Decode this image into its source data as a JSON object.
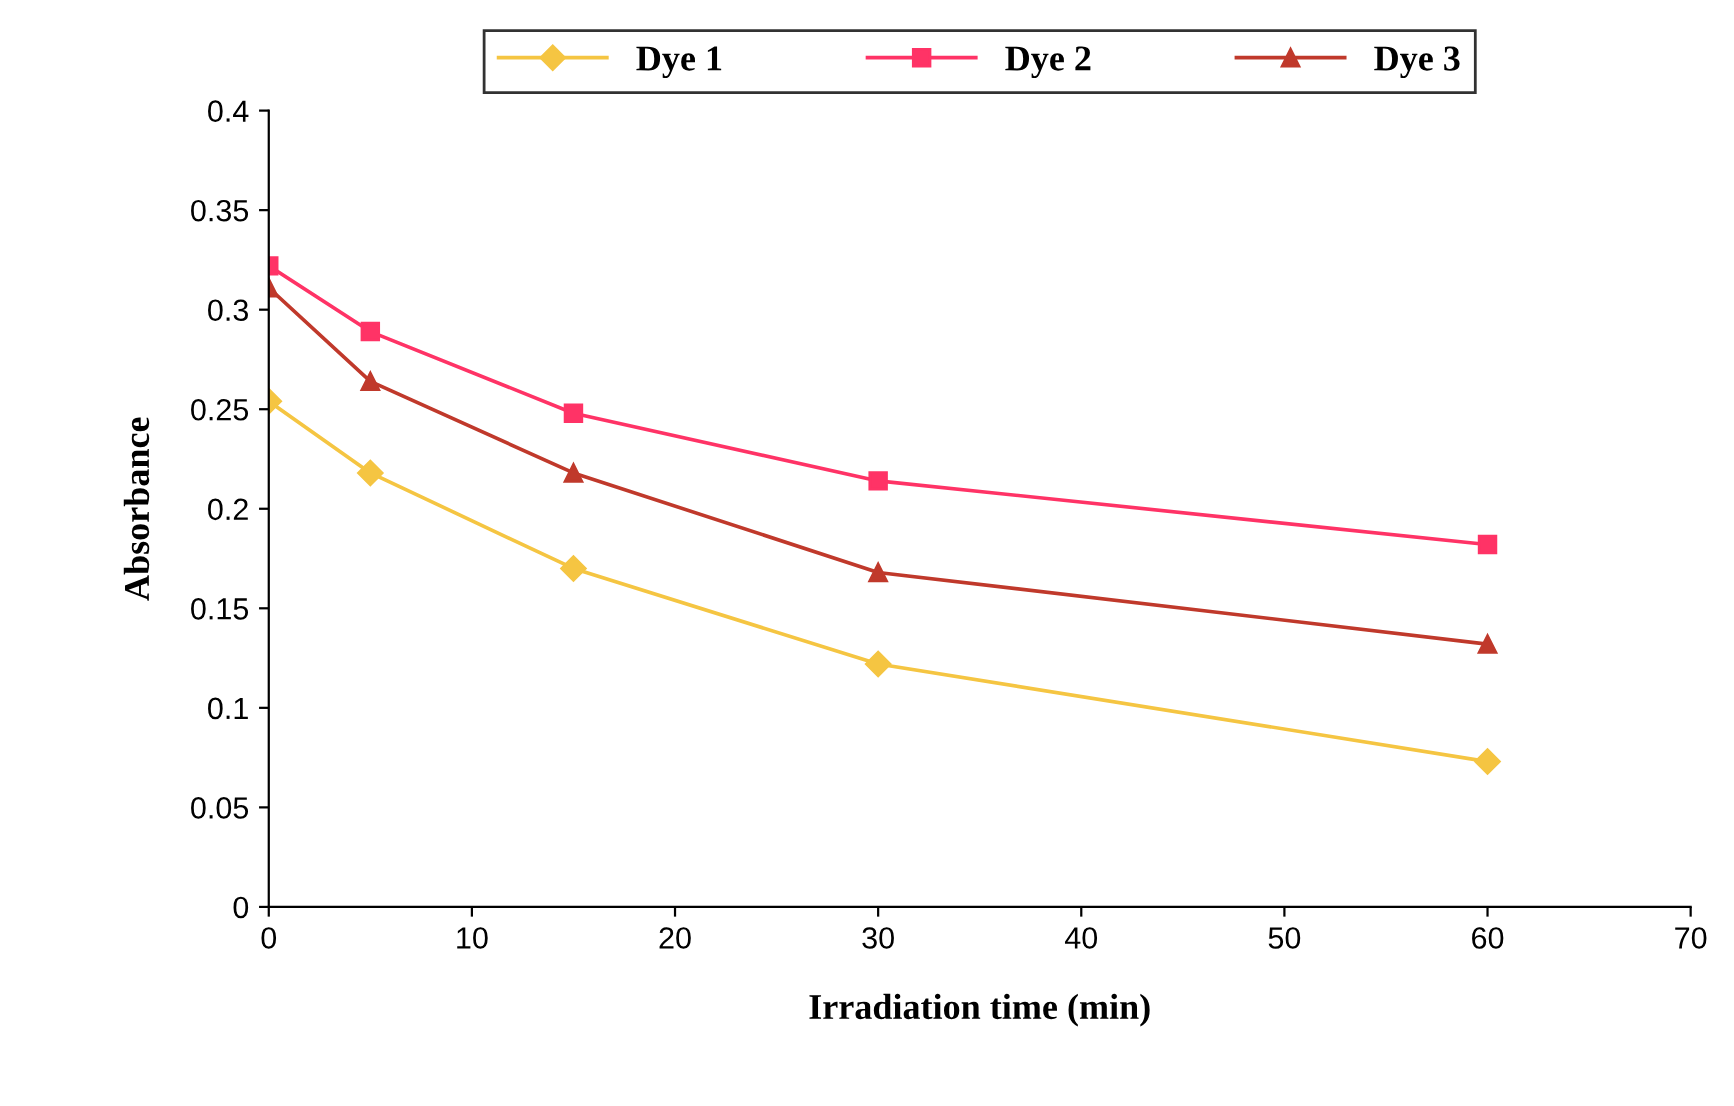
{
  "chart_data": {
    "type": "line",
    "xlabel": "Irradiation time (min)",
    "ylabel": "Absorbance",
    "x": [
      0,
      5,
      15,
      30,
      60
    ],
    "series": [
      {
        "name": "Dye 1",
        "color": "#f5c542",
        "marker": "diamond",
        "values": [
          0.254,
          0.218,
          0.17,
          0.122,
          0.073
        ]
      },
      {
        "name": "Dye 2",
        "color": "#ff3366",
        "marker": "square",
        "values": [
          0.322,
          0.289,
          0.248,
          0.214,
          0.182
        ]
      },
      {
        "name": "Dye 3",
        "color": "#c0392b",
        "marker": "triangle",
        "values": [
          0.311,
          0.264,
          0.218,
          0.168,
          0.132
        ]
      }
    ],
    "xlim": [
      0,
      70
    ],
    "xticks": [
      0,
      10,
      20,
      30,
      40,
      50,
      60,
      70
    ],
    "ylim": [
      0,
      0.4
    ],
    "yticks": [
      0,
      0.05,
      0.1,
      0.15,
      0.2,
      0.25,
      0.3,
      0.35,
      0.4
    ],
    "grid": false,
    "legend": "top",
    "line_style": "solid"
  }
}
